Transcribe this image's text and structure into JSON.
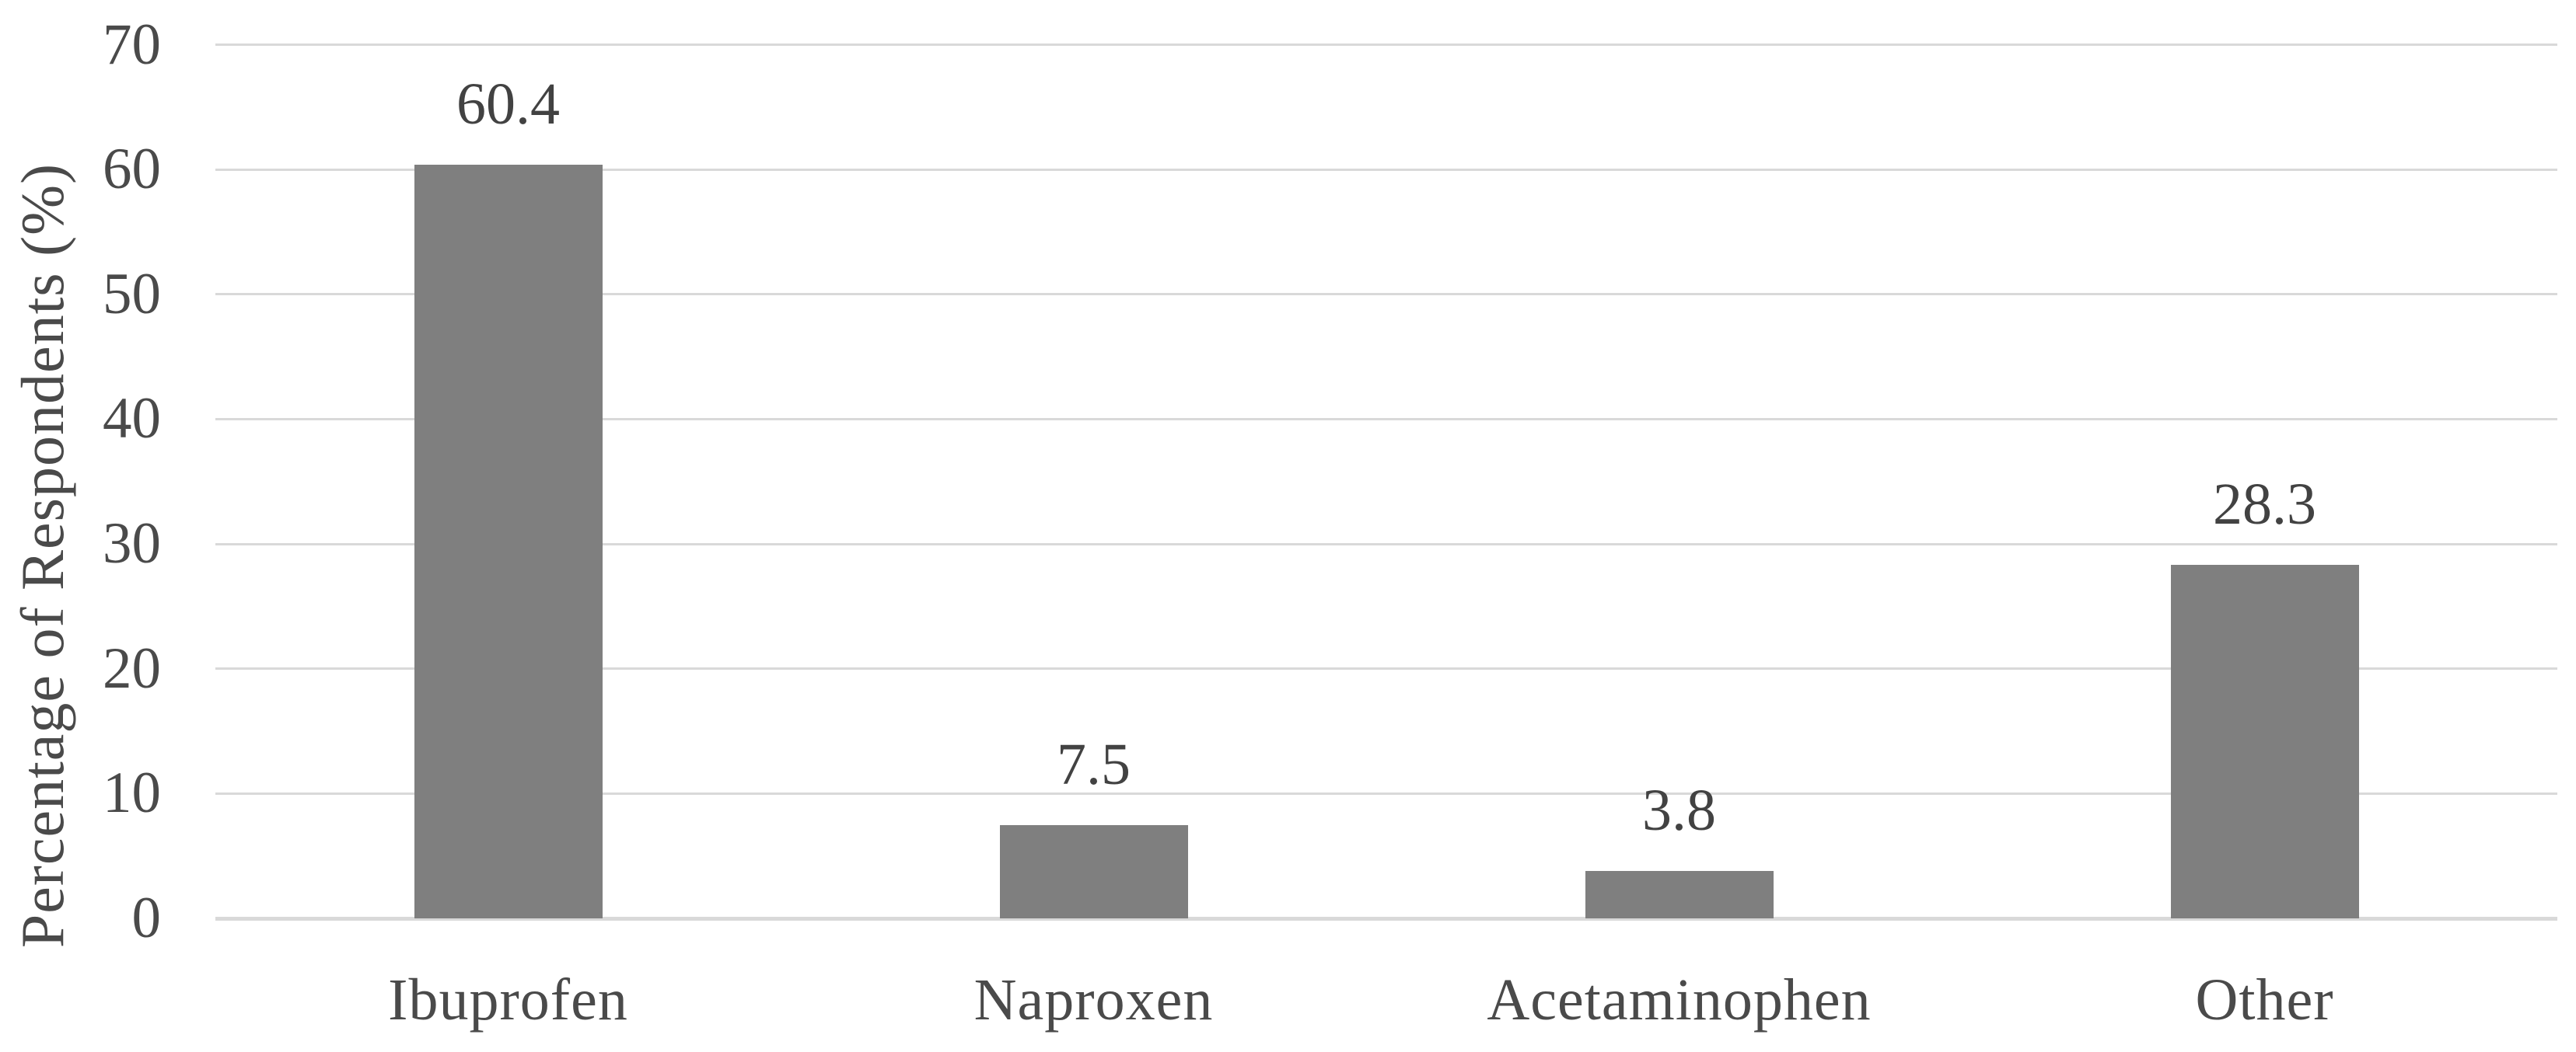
{
  "chart_data": {
    "type": "bar",
    "title": "",
    "categories": [
      "Ibuprofen",
      "Naproxen",
      "Acetaminophen",
      "Other"
    ],
    "values": [
      60.4,
      7.5,
      3.8,
      28.3
    ],
    "data_labels": [
      "60.4",
      "7.5",
      "3.8",
      "28.3"
    ],
    "xlabel": "",
    "ylabel": "Percentage of Respondents (%)",
    "ylim": [
      0,
      70
    ],
    "ytick_interval": 10,
    "ytick_labels": [
      "0",
      "10",
      "20",
      "30",
      "40",
      "50",
      "60",
      "70"
    ],
    "grid": "horizontal",
    "legend_position": "none",
    "colors": {
      "bar": "#7f7f7f",
      "gridline": "#d9d9d9",
      "axis_line": "#d9d9d9",
      "text": "#4a4a4a",
      "data_label_text": "#424242",
      "background": "#ffffff"
    }
  }
}
